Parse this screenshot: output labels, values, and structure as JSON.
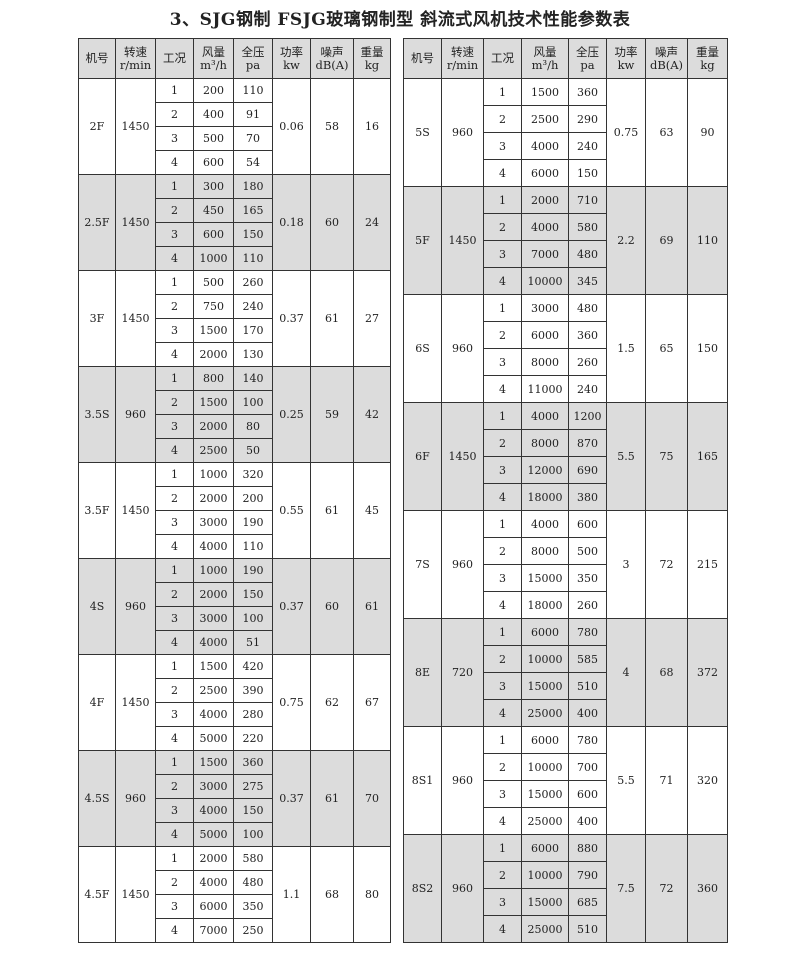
{
  "title": "3、SJG钢制  FSJG玻璃钢制型  斜流式风机技术性能参数表",
  "headers": [
    [
      "机号",
      ""
    ],
    [
      "转速",
      "r/min"
    ],
    [
      "工况",
      ""
    ],
    [
      "风量",
      "m³/h"
    ],
    [
      "全压",
      "pa"
    ],
    [
      "功率",
      "kw"
    ],
    [
      "噪声",
      "dB(A)"
    ],
    [
      "重量",
      "kg"
    ]
  ],
  "shade_color": "#dcdcdc",
  "left": [
    {
      "model": "2F",
      "speed": "1450",
      "power": "0.06",
      "noise": "58",
      "weight": "16",
      "shaded": false,
      "rows": [
        [
          "1",
          "200",
          "110"
        ],
        [
          "2",
          "400",
          "91"
        ],
        [
          "3",
          "500",
          "70"
        ],
        [
          "4",
          "600",
          "54"
        ]
      ]
    },
    {
      "model": "2.5F",
      "speed": "1450",
      "power": "0.18",
      "noise": "60",
      "weight": "24",
      "shaded": true,
      "rows": [
        [
          "1",
          "300",
          "180"
        ],
        [
          "2",
          "450",
          "165"
        ],
        [
          "3",
          "600",
          "150"
        ],
        [
          "4",
          "1000",
          "110"
        ]
      ]
    },
    {
      "model": "3F",
      "speed": "1450",
      "power": "0.37",
      "noise": "61",
      "weight": "27",
      "shaded": false,
      "rows": [
        [
          "1",
          "500",
          "260"
        ],
        [
          "2",
          "750",
          "240"
        ],
        [
          "3",
          "1500",
          "170"
        ],
        [
          "4",
          "2000",
          "130"
        ]
      ]
    },
    {
      "model": "3.5S",
      "speed": "960",
      "power": "0.25",
      "noise": "59",
      "weight": "42",
      "shaded": true,
      "rows": [
        [
          "1",
          "800",
          "140"
        ],
        [
          "2",
          "1500",
          "100"
        ],
        [
          "3",
          "2000",
          "80"
        ],
        [
          "4",
          "2500",
          "50"
        ]
      ]
    },
    {
      "model": "3.5F",
      "speed": "1450",
      "power": "0.55",
      "noise": "61",
      "weight": "45",
      "shaded": false,
      "rows": [
        [
          "1",
          "1000",
          "320"
        ],
        [
          "2",
          "2000",
          "200"
        ],
        [
          "3",
          "3000",
          "190"
        ],
        [
          "4",
          "4000",
          "110"
        ]
      ]
    },
    {
      "model": "4S",
      "speed": "960",
      "power": "0.37",
      "noise": "60",
      "weight": "61",
      "shaded": true,
      "rows": [
        [
          "1",
          "1000",
          "190"
        ],
        [
          "2",
          "2000",
          "150"
        ],
        [
          "3",
          "3000",
          "100"
        ],
        [
          "4",
          "4000",
          "51"
        ]
      ]
    },
    {
      "model": "4F",
      "speed": "1450",
      "power": "0.75",
      "noise": "62",
      "weight": "67",
      "shaded": false,
      "rows": [
        [
          "1",
          "1500",
          "420"
        ],
        [
          "2",
          "2500",
          "390"
        ],
        [
          "3",
          "4000",
          "280"
        ],
        [
          "4",
          "5000",
          "220"
        ]
      ]
    },
    {
      "model": "4.5S",
      "speed": "960",
      "power": "0.37",
      "noise": "61",
      "weight": "70",
      "shaded": true,
      "rows": [
        [
          "1",
          "1500",
          "360"
        ],
        [
          "2",
          "3000",
          "275"
        ],
        [
          "3",
          "4000",
          "150"
        ],
        [
          "4",
          "5000",
          "100"
        ]
      ]
    },
    {
      "model": "4.5F",
      "speed": "1450",
      "power": "1.1",
      "noise": "68",
      "weight": "80",
      "shaded": false,
      "rows": [
        [
          "1",
          "2000",
          "580"
        ],
        [
          "2",
          "4000",
          "480"
        ],
        [
          "3",
          "6000",
          "350"
        ],
        [
          "4",
          "7000",
          "250"
        ]
      ]
    }
  ],
  "right": [
    {
      "model": "5S",
      "speed": "960",
      "power": "0.75",
      "noise": "63",
      "weight": "90",
      "shaded": false,
      "rows": [
        [
          "1",
          "1500",
          "360"
        ],
        [
          "2",
          "2500",
          "290"
        ],
        [
          "3",
          "4000",
          "240"
        ],
        [
          "4",
          "6000",
          "150"
        ]
      ]
    },
    {
      "model": "5F",
      "speed": "1450",
      "power": "2.2",
      "noise": "69",
      "weight": "110",
      "shaded": true,
      "rows": [
        [
          "1",
          "2000",
          "710"
        ],
        [
          "2",
          "4000",
          "580"
        ],
        [
          "3",
          "7000",
          "480"
        ],
        [
          "4",
          "10000",
          "345"
        ]
      ]
    },
    {
      "model": "6S",
      "speed": "960",
      "power": "1.5",
      "noise": "65",
      "weight": "150",
      "shaded": false,
      "rows": [
        [
          "1",
          "3000",
          "480"
        ],
        [
          "2",
          "6000",
          "360"
        ],
        [
          "3",
          "8000",
          "260"
        ],
        [
          "4",
          "11000",
          "240"
        ]
      ]
    },
    {
      "model": "6F",
      "speed": "1450",
      "power": "5.5",
      "noise": "75",
      "weight": "165",
      "shaded": true,
      "rows": [
        [
          "1",
          "4000",
          "1200"
        ],
        [
          "2",
          "8000",
          "870"
        ],
        [
          "3",
          "12000",
          "690"
        ],
        [
          "4",
          "18000",
          "380"
        ]
      ]
    },
    {
      "model": "7S",
      "speed": "960",
      "power": "3",
      "noise": "72",
      "weight": "215",
      "shaded": false,
      "rows": [
        [
          "1",
          "4000",
          "600"
        ],
        [
          "2",
          "8000",
          "500"
        ],
        [
          "3",
          "15000",
          "350"
        ],
        [
          "4",
          "18000",
          "260"
        ]
      ]
    },
    {
      "model": "8E",
      "speed": "720",
      "power": "4",
      "noise": "68",
      "weight": "372",
      "shaded": true,
      "rows": [
        [
          "1",
          "6000",
          "780"
        ],
        [
          "2",
          "10000",
          "585"
        ],
        [
          "3",
          "15000",
          "510"
        ],
        [
          "4",
          "25000",
          "400"
        ]
      ]
    },
    {
      "model": "8S1",
      "speed": "960",
      "power": "5.5",
      "noise": "71",
      "weight": "320",
      "shaded": false,
      "rows": [
        [
          "1",
          "6000",
          "780"
        ],
        [
          "2",
          "10000",
          "700"
        ],
        [
          "3",
          "15000",
          "600"
        ],
        [
          "4",
          "25000",
          "400"
        ]
      ]
    },
    {
      "model": "8S2",
      "speed": "960",
      "power": "7.5",
      "noise": "72",
      "weight": "360",
      "shaded": true,
      "rows": [
        [
          "1",
          "6000",
          "880"
        ],
        [
          "2",
          "10000",
          "790"
        ],
        [
          "3",
          "15000",
          "685"
        ],
        [
          "4",
          "25000",
          "510"
        ]
      ]
    }
  ]
}
